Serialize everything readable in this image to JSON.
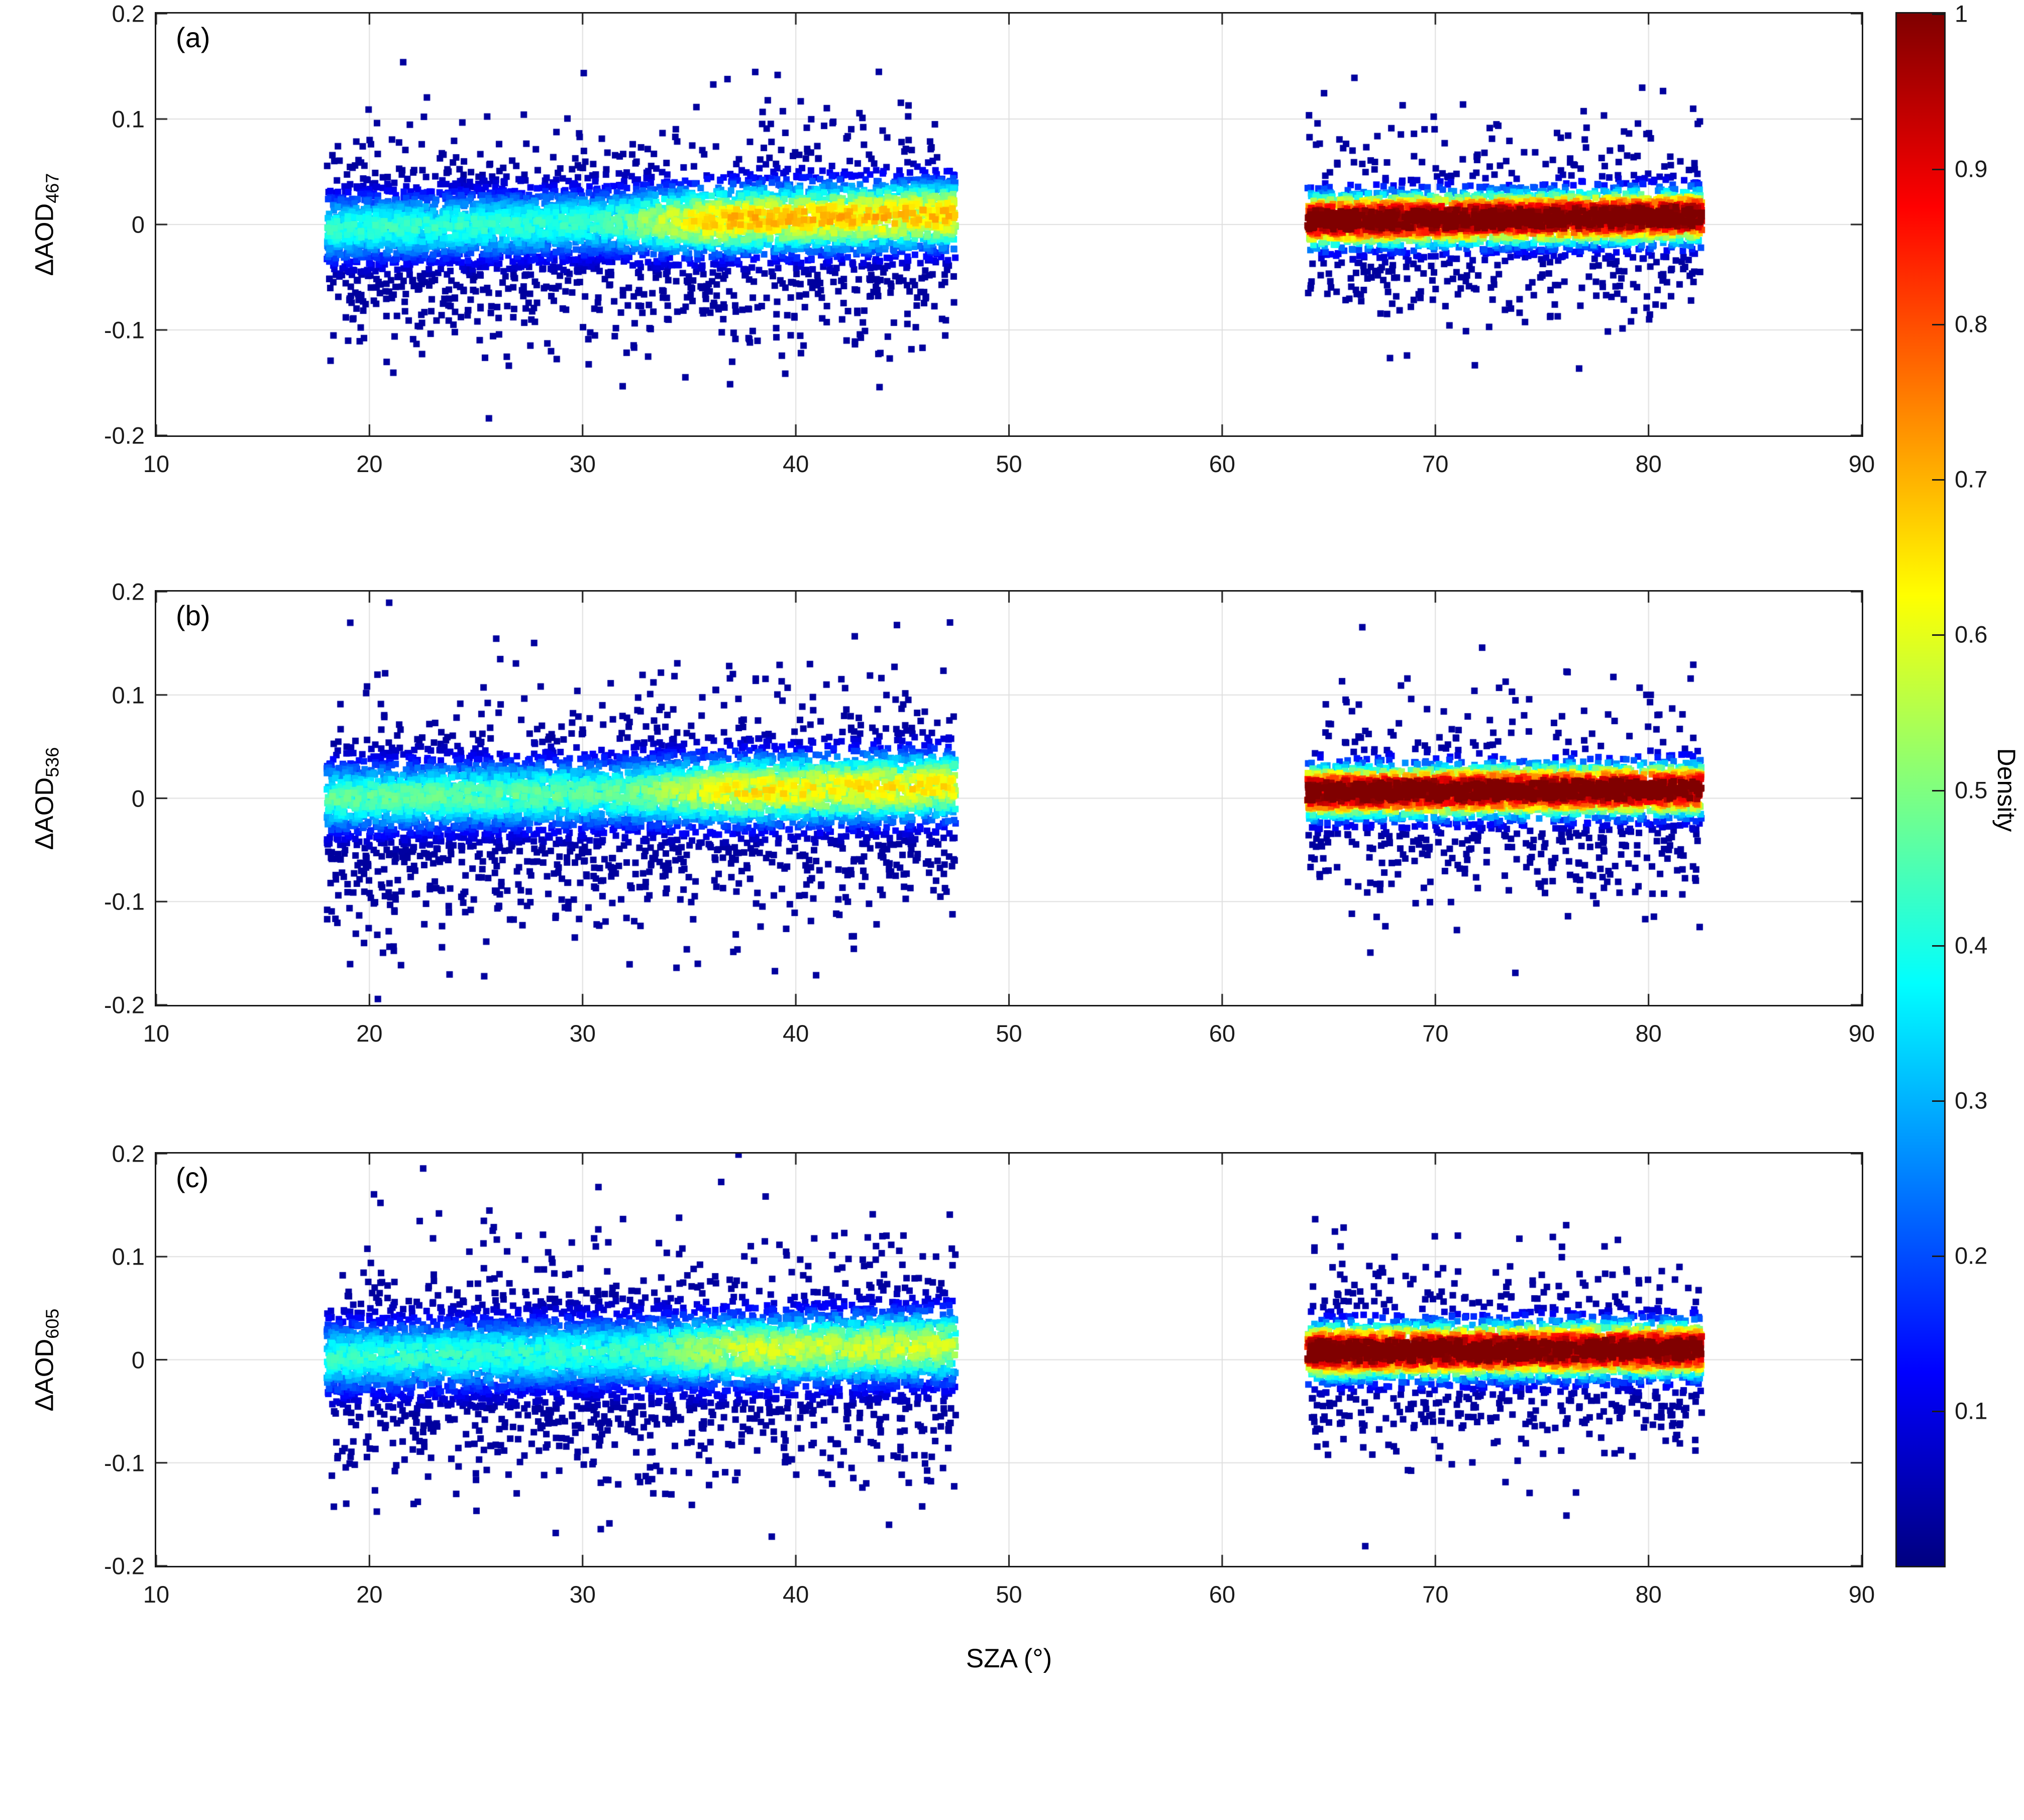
{
  "figure": {
    "xlabel": "SZA (°)",
    "x_tick_labels": [
      "10",
      "20",
      "30",
      "40",
      "50",
      "60",
      "70",
      "80",
      "90"
    ],
    "y_tick_labels": [
      "0.2",
      "0.1",
      "0",
      "-0.1",
      "-0.2"
    ],
    "x_range": [
      10,
      90
    ],
    "y_range": [
      -0.2,
      0.2
    ],
    "grid_color": "#dedede",
    "axis_color": "#1a1a1a",
    "background": "#ffffff"
  },
  "colorbar": {
    "label": "Density",
    "tick_labels": [
      "1",
      "0.9",
      "0.8",
      "0.7",
      "0.6",
      "0.5",
      "0.4",
      "0.3",
      "0.2",
      "0.1"
    ],
    "range": [
      0,
      1
    ],
    "colormap": "jet",
    "stops": [
      {
        "t": 0.0,
        "c": "#000080"
      },
      {
        "t": 0.125,
        "c": "#0000ff"
      },
      {
        "t": 0.375,
        "c": "#00ffff"
      },
      {
        "t": 0.625,
        "c": "#ffff00"
      },
      {
        "t": 0.875,
        "c": "#ff0000"
      },
      {
        "t": 1.0,
        "c": "#800000"
      }
    ]
  },
  "chart_data": {
    "type": "scatter",
    "subtype": "density-colored scatter (jet colormap, square markers)",
    "title": "",
    "xlabel": "SZA (°)",
    "x_range": [
      10,
      90
    ],
    "y_range": [
      -0.2,
      0.2
    ],
    "grid": true,
    "legend": "colorbar labelled Density, 0 to 1",
    "description": "Three stacked panels of AOD retrieval differences vs solar zenith angle. Each panel has two SZA clusters: SZA 18-47.5 deg (moderate density core near dAOD=0, cyan/green/yellow core, dark-blue outliers mostly below, down to -0.2) and SZA 64-82.5 deg (very dense thin band near dAOD=0 with red core, density near 1, rainbow fringe, sparse dark-blue outliers).",
    "panels": [
      {
        "tag": "(a)",
        "ylabel_main": "ΔAOD",
        "ylabel_sub": "467",
        "clusters": [
          {
            "x_min": 18,
            "x_max": 47.5,
            "n": 5200,
            "mean0": -0.004,
            "slope": 0.00045,
            "core_frac": 0.8,
            "core_sigma": 0.02,
            "tail_base": 0.018,
            "tail_sigma": 0.05,
            "tail_neg_frac": 0.72,
            "peak_lo": 0.38,
            "peak_hi": 0.62,
            "ramp_start": 30,
            "ramp_end": 37,
            "density_sigma": 0.022,
            "seed": 101
          },
          {
            "x_min": 64,
            "x_max": 82.5,
            "n": 3800,
            "mean0": 0.004,
            "slope": 0.0002,
            "core_frac": 0.86,
            "core_sigma": 0.013,
            "tail_base": 0.015,
            "tail_sigma": 0.042,
            "tail_neg_frac": 0.7,
            "peak_lo": 1.0,
            "peak_hi": 1.0,
            "ramp_start": 64,
            "ramp_end": 65,
            "density_sigma": 0.016,
            "seed": 102
          }
        ]
      },
      {
        "tag": "(b)",
        "ylabel_main": "ΔAOD",
        "ylabel_sub": "536",
        "clusters": [
          {
            "x_min": 18,
            "x_max": 47.5,
            "n": 5200,
            "mean0": 0.0,
            "slope": 0.0004,
            "core_frac": 0.79,
            "core_sigma": 0.021,
            "tail_base": 0.018,
            "tail_sigma": 0.052,
            "tail_neg_frac": 0.72,
            "peak_lo": 0.42,
            "peak_hi": 0.58,
            "ramp_start": 31,
            "ramp_end": 38,
            "density_sigma": 0.023,
            "seed": 201
          },
          {
            "x_min": 64,
            "x_max": 82.5,
            "n": 3800,
            "mean0": 0.006,
            "slope": 0.00015,
            "core_frac": 0.86,
            "core_sigma": 0.013,
            "tail_base": 0.015,
            "tail_sigma": 0.044,
            "tail_neg_frac": 0.7,
            "peak_lo": 1.0,
            "peak_hi": 1.0,
            "ramp_start": 64,
            "ramp_end": 65,
            "density_sigma": 0.016,
            "seed": 202
          }
        ]
      },
      {
        "tag": "(c)",
        "ylabel_main": "ΔAOD",
        "ylabel_sub": "605",
        "clusters": [
          {
            "x_min": 18,
            "x_max": 47.5,
            "n": 5200,
            "mean0": 0.002,
            "slope": 0.00038,
            "core_frac": 0.78,
            "core_sigma": 0.022,
            "tail_base": 0.018,
            "tail_sigma": 0.054,
            "tail_neg_frac": 0.72,
            "peak_lo": 0.38,
            "peak_hi": 0.52,
            "ramp_start": 31,
            "ramp_end": 38,
            "density_sigma": 0.024,
            "seed": 301
          },
          {
            "x_min": 64,
            "x_max": 82.5,
            "n": 3800,
            "mean0": 0.008,
            "slope": 0.00012,
            "core_frac": 0.85,
            "core_sigma": 0.014,
            "tail_base": 0.015,
            "tail_sigma": 0.046,
            "tail_neg_frac": 0.7,
            "peak_lo": 1.0,
            "peak_hi": 1.0,
            "ramp_start": 64,
            "ramp_end": 65,
            "density_sigma": 0.017,
            "seed": 302
          }
        ]
      }
    ],
    "colorbar": {
      "label": "Density",
      "ticks": [
        0.1,
        0.2,
        0.3,
        0.4,
        0.5,
        0.6,
        0.7,
        0.8,
        0.9,
        1
      ],
      "range": [
        0,
        1
      ],
      "colormap": "jet",
      "position": "right, spans all panels"
    }
  }
}
